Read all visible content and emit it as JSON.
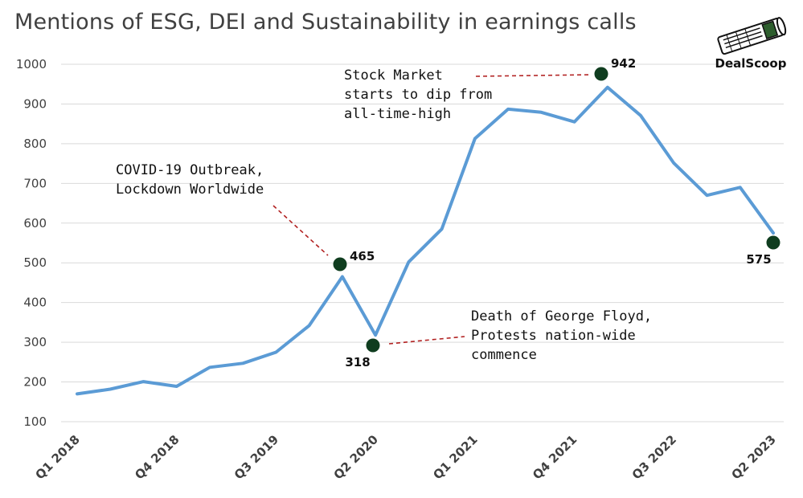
{
  "title": "Mentions of ESG, DEI and Sustainability in earnings calls",
  "logo": {
    "text": "DealScoop",
    "icon": "newspaper-roll-icon"
  },
  "chart_data": {
    "type": "line",
    "x": [
      "Q1 2018",
      "Q2 2018",
      "Q3 2018",
      "Q4 2018",
      "Q1 2019",
      "Q2 2019",
      "Q3 2019",
      "Q4 2019",
      "Q1 2020",
      "Q2 2020",
      "Q3 2020",
      "Q4 2020",
      "Q1 2021",
      "Q2 2021",
      "Q3 2021",
      "Q4 2021",
      "Q1 2022",
      "Q2 2022",
      "Q3 2022",
      "Q4 2022",
      "Q1 2023",
      "Q2 2023"
    ],
    "xtick_labels": [
      "Q1 2018",
      "Q4 2018",
      "Q3 2019",
      "Q2 2020",
      "Q1 2021",
      "Q4 2021",
      "Q3 2022",
      "Q2 2023"
    ],
    "series": [
      {
        "values": [
          170,
          182,
          201,
          189,
          237,
          247,
          275,
          342,
          465,
          318,
          502,
          585,
          813,
          887,
          879,
          855,
          942,
          871,
          751,
          670,
          690,
          575
        ],
        "color": "#5b9bd5"
      }
    ],
    "ylim": [
      100,
      1000
    ],
    "yticks": [
      100,
      200,
      300,
      400,
      500,
      600,
      700,
      800,
      900,
      1000
    ],
    "grid": "horizontal",
    "marker_color": "#0f3d1f",
    "annotation_color": "#b22222",
    "highlights": [
      {
        "label": "465"
      },
      {
        "label": "318"
      },
      {
        "label": "942"
      },
      {
        "label": "575"
      }
    ],
    "annotations": [
      {
        "lines": [
          "COVID-19 Outbreak,",
          "Lockdown Worldwide"
        ]
      },
      {
        "lines": [
          "Death of George Floyd,",
          "Protests nation-wide",
          "commence"
        ]
      },
      {
        "lines": [
          "Stock Market",
          "starts to dip from",
          "all-time-high"
        ]
      }
    ]
  }
}
